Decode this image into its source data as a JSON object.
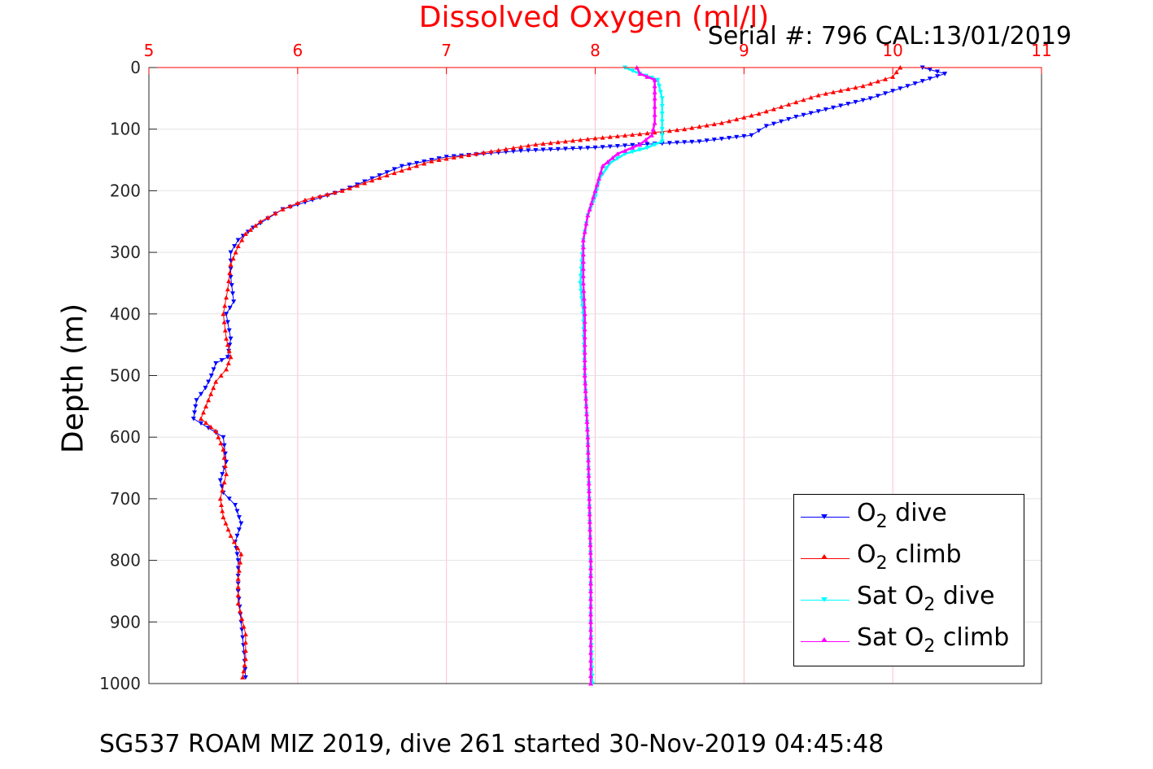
{
  "header": {
    "title": "Dissolved Oxygen (ml/l)",
    "serial": "Serial #: 796  CAL:13/01/2019"
  },
  "axes": {
    "ylabel": "Depth (m)"
  },
  "caption": "SG537 ROAM MIZ 2019, dive 261 started 30-Nov-2019 04:45:48",
  "legend": {
    "o2_dive": {
      "pre": "O",
      "sub": "2",
      "post": " dive"
    },
    "o2_climb": {
      "pre": "O",
      "sub": "2",
      "post": " climb"
    },
    "sat_dive": {
      "pre": "Sat O",
      "sub": "2",
      "post": " dive"
    },
    "sat_climb": {
      "pre": "Sat O",
      "sub": "2",
      "post": " climb"
    }
  },
  "chart_data": {
    "type": "line",
    "title": "Dissolved Oxygen (ml/l)",
    "xlabel": "",
    "ylabel": "Depth (m)",
    "xlim": [
      5,
      11
    ],
    "ylim": [
      0,
      1000
    ],
    "y_reversed": true,
    "x_axis_position": "top",
    "x_ticks": [
      5,
      6,
      7,
      8,
      9,
      10,
      11
    ],
    "y_ticks": [
      0,
      100,
      200,
      300,
      400,
      500,
      600,
      700,
      800,
      900,
      1000
    ],
    "grid": true,
    "legend_placement": "bottom-right",
    "colors": {
      "x_axis": "#ff0000",
      "grid": "#ffc0cb"
    },
    "series": [
      {
        "name": "O2 dive",
        "color": "#0000ff",
        "marker": "triangle-down",
        "points": [
          [
            10.2,
            0
          ],
          [
            10.35,
            10
          ],
          [
            10.1,
            30
          ],
          [
            9.85,
            50
          ],
          [
            9.6,
            65
          ],
          [
            9.35,
            80
          ],
          [
            9.15,
            95
          ],
          [
            9.05,
            110
          ],
          [
            8.7,
            120
          ],
          [
            8.3,
            125
          ],
          [
            8.0,
            130
          ],
          [
            7.5,
            135
          ],
          [
            7.0,
            145
          ],
          [
            6.7,
            160
          ],
          [
            6.5,
            180
          ],
          [
            6.3,
            200
          ],
          [
            6.1,
            215
          ],
          [
            5.9,
            230
          ],
          [
            5.8,
            245
          ],
          [
            5.7,
            260
          ],
          [
            5.6,
            280
          ],
          [
            5.55,
            300
          ],
          [
            5.55,
            340
          ],
          [
            5.57,
            380
          ],
          [
            5.52,
            400
          ],
          [
            5.55,
            440
          ],
          [
            5.53,
            470
          ],
          [
            5.45,
            480
          ],
          [
            5.42,
            500
          ],
          [
            5.38,
            520
          ],
          [
            5.32,
            540
          ],
          [
            5.3,
            570
          ],
          [
            5.4,
            585
          ],
          [
            5.5,
            600
          ],
          [
            5.52,
            640
          ],
          [
            5.48,
            670
          ],
          [
            5.5,
            690
          ],
          [
            5.58,
            710
          ],
          [
            5.62,
            740
          ],
          [
            5.58,
            770
          ],
          [
            5.6,
            800
          ],
          [
            5.6,
            850
          ],
          [
            5.62,
            900
          ],
          [
            5.64,
            950
          ],
          [
            5.65,
            990
          ]
        ]
      },
      {
        "name": "O2 climb",
        "color": "#ff0000",
        "marker": "triangle-up",
        "points": [
          [
            10.05,
            0
          ],
          [
            10.0,
            15
          ],
          [
            9.8,
            30
          ],
          [
            9.5,
            45
          ],
          [
            9.3,
            60
          ],
          [
            9.1,
            75
          ],
          [
            8.85,
            90
          ],
          [
            8.6,
            100
          ],
          [
            8.3,
            108
          ],
          [
            8.0,
            115
          ],
          [
            7.6,
            125
          ],
          [
            7.2,
            140
          ],
          [
            6.9,
            152
          ],
          [
            6.6,
            175
          ],
          [
            6.3,
            200
          ],
          [
            6.05,
            215
          ],
          [
            5.9,
            230
          ],
          [
            5.75,
            250
          ],
          [
            5.65,
            270
          ],
          [
            5.6,
            290
          ],
          [
            5.55,
            320
          ],
          [
            5.53,
            360
          ],
          [
            5.5,
            400
          ],
          [
            5.52,
            440
          ],
          [
            5.55,
            470
          ],
          [
            5.52,
            490
          ],
          [
            5.45,
            510
          ],
          [
            5.4,
            540
          ],
          [
            5.35,
            570
          ],
          [
            5.45,
            590
          ],
          [
            5.5,
            620
          ],
          [
            5.52,
            660
          ],
          [
            5.48,
            700
          ],
          [
            5.5,
            730
          ],
          [
            5.55,
            760
          ],
          [
            5.62,
            790
          ],
          [
            5.6,
            830
          ],
          [
            5.6,
            870
          ],
          [
            5.65,
            920
          ],
          [
            5.65,
            960
          ],
          [
            5.63,
            990
          ]
        ]
      },
      {
        "name": "Sat O2 dive",
        "color": "#00ffff",
        "marker": "triangle-down",
        "points": [
          [
            8.2,
            0
          ],
          [
            8.3,
            10
          ],
          [
            8.42,
            20
          ],
          [
            8.45,
            50
          ],
          [
            8.45,
            100
          ],
          [
            8.45,
            120
          ],
          [
            8.35,
            130
          ],
          [
            8.2,
            140
          ],
          [
            8.1,
            155
          ],
          [
            8.03,
            180
          ],
          [
            8.0,
            210
          ],
          [
            7.95,
            240
          ],
          [
            7.92,
            280
          ],
          [
            7.9,
            350
          ],
          [
            7.92,
            400
          ],
          [
            7.93,
            500
          ],
          [
            7.95,
            600
          ],
          [
            7.96,
            700
          ],
          [
            7.97,
            800
          ],
          [
            7.97,
            900
          ],
          [
            7.98,
            1000
          ]
        ]
      },
      {
        "name": "Sat O2 climb",
        "color": "#ff00ff",
        "marker": "triangle-up",
        "points": [
          [
            8.28,
            0
          ],
          [
            8.3,
            10
          ],
          [
            8.4,
            20
          ],
          [
            8.4,
            50
          ],
          [
            8.4,
            90
          ],
          [
            8.38,
            110
          ],
          [
            8.3,
            125
          ],
          [
            8.15,
            140
          ],
          [
            8.05,
            160
          ],
          [
            8.0,
            200
          ],
          [
            7.95,
            240
          ],
          [
            7.92,
            280
          ],
          [
            7.92,
            350
          ],
          [
            7.93,
            400
          ],
          [
            7.93,
            500
          ],
          [
            7.95,
            600
          ],
          [
            7.96,
            700
          ],
          [
            7.97,
            800
          ],
          [
            7.97,
            900
          ],
          [
            7.97,
            1000
          ]
        ]
      }
    ]
  }
}
